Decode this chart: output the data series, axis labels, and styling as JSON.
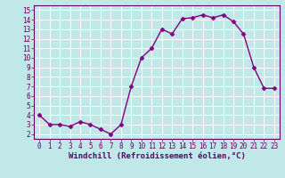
{
  "x": [
    0,
    1,
    2,
    3,
    4,
    5,
    6,
    7,
    8,
    9,
    10,
    11,
    12,
    13,
    14,
    15,
    16,
    17,
    18,
    19,
    20,
    21,
    22,
    23
  ],
  "y": [
    4.0,
    3.0,
    3.0,
    2.8,
    3.3,
    3.0,
    2.5,
    2.0,
    3.0,
    7.0,
    10.0,
    11.0,
    13.0,
    12.5,
    14.1,
    14.2,
    14.5,
    14.2,
    14.5,
    13.8,
    12.5,
    9.0,
    6.8,
    6.8
  ],
  "line_color": "#800080",
  "marker": "D",
  "marker_size": 2.5,
  "bg_color": "#c0e8e8",
  "grid_color": "#aaaaaa",
  "xlabel": "Windchill (Refroidissement éolien,°C)",
  "xlim": [
    -0.5,
    23.5
  ],
  "ylim": [
    1.5,
    15.5
  ],
  "yticks": [
    2,
    3,
    4,
    5,
    6,
    7,
    8,
    9,
    10,
    11,
    12,
    13,
    14,
    15
  ],
  "xticks": [
    0,
    1,
    2,
    3,
    4,
    5,
    6,
    7,
    8,
    9,
    10,
    11,
    12,
    13,
    14,
    15,
    16,
    17,
    18,
    19,
    20,
    21,
    22,
    23
  ],
  "tick_fontsize": 5.5,
  "label_fontsize": 6.5,
  "line_width": 1.0,
  "spine_color": "#600060",
  "text_color": "#600060"
}
